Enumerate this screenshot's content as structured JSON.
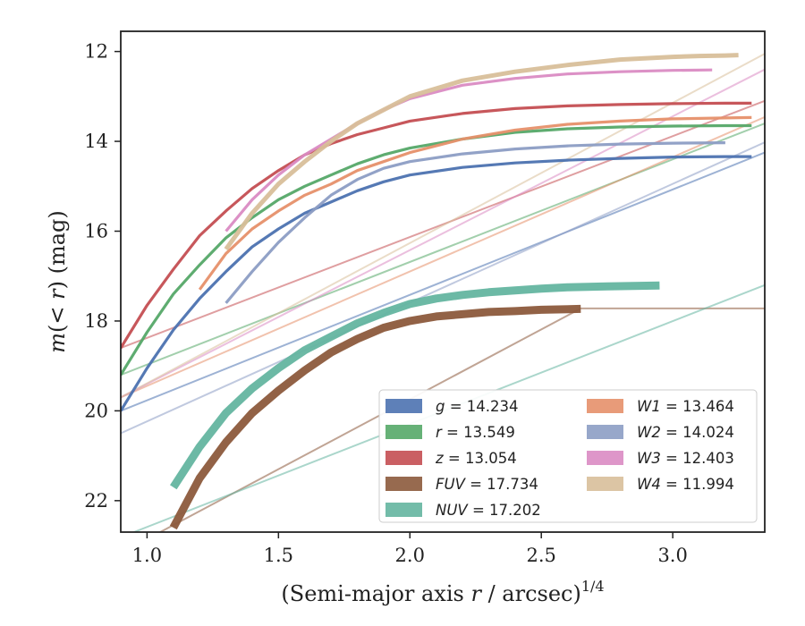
{
  "chart_data": {
    "type": "line",
    "xlabel_main": "(Semi-major axis ",
    "xlabel_var": "r",
    "xlabel_unit": " / arcsec)",
    "xlabel_exp": "1/4",
    "ylabel_m": "m",
    "ylabel_inner": "(< ",
    "ylabel_var": "r",
    "ylabel_close": ")",
    "ylabel_unit": " (mag)",
    "xlim": [
      0.9,
      3.35
    ],
    "ylim": [
      22.7,
      11.55
    ],
    "y_inverted": true,
    "xticks": [
      1.0,
      1.5,
      2.0,
      2.5,
      3.0
    ],
    "xtick_labels": [
      "1.0",
      "1.5",
      "2.0",
      "2.5",
      "3.0"
    ],
    "yticks": [
      12,
      14,
      16,
      18,
      20,
      22
    ],
    "ytick_labels": [
      "12",
      "14",
      "16",
      "18",
      "20",
      "22"
    ],
    "legend_position": "lower-right",
    "legend_columns": 2,
    "series": [
      {
        "name": "g",
        "label_value": "= 14.234",
        "color": "#4c72b0",
        "thin_x": [
          0.9,
          3.35
        ],
        "thin_y": [
          20.0,
          14.25
        ],
        "x": [
          0.9,
          1.0,
          1.1,
          1.2,
          1.3,
          1.4,
          1.5,
          1.6,
          1.7,
          1.8,
          1.9,
          2.0,
          2.2,
          2.4,
          2.6,
          2.8,
          3.0,
          3.2,
          3.3
        ],
        "y": [
          20.0,
          19.05,
          18.2,
          17.5,
          16.9,
          16.35,
          15.95,
          15.6,
          15.35,
          15.1,
          14.9,
          14.75,
          14.58,
          14.48,
          14.42,
          14.38,
          14.35,
          14.34,
          14.34
        ]
      },
      {
        "name": "r",
        "label_value": "= 13.549",
        "color": "#55a868",
        "thin_x": [
          0.9,
          3.35
        ],
        "thin_y": [
          19.2,
          13.6
        ],
        "x": [
          0.9,
          1.0,
          1.1,
          1.2,
          1.3,
          1.4,
          1.5,
          1.6,
          1.7,
          1.8,
          1.9,
          2.0,
          2.2,
          2.4,
          2.6,
          2.8,
          3.0,
          3.2,
          3.3
        ],
        "y": [
          19.2,
          18.25,
          17.4,
          16.75,
          16.15,
          15.7,
          15.3,
          15.0,
          14.75,
          14.5,
          14.3,
          14.15,
          13.95,
          13.8,
          13.72,
          13.68,
          13.66,
          13.65,
          13.65
        ]
      },
      {
        "name": "z",
        "label_value": "= 13.054",
        "color": "#c44e52",
        "thin_x": [
          0.9,
          3.35
        ],
        "thin_y": [
          18.6,
          13.1
        ],
        "x": [
          0.9,
          1.0,
          1.1,
          1.2,
          1.3,
          1.4,
          1.5,
          1.6,
          1.7,
          1.8,
          1.9,
          2.0,
          2.2,
          2.4,
          2.6,
          2.8,
          3.0,
          3.2,
          3.3
        ],
        "y": [
          18.6,
          17.65,
          16.85,
          16.1,
          15.55,
          15.05,
          14.65,
          14.3,
          14.05,
          13.85,
          13.7,
          13.55,
          13.38,
          13.27,
          13.21,
          13.18,
          13.16,
          13.15,
          13.15
        ]
      },
      {
        "name": "FUV",
        "label_value": "= 17.734",
        "color": "#8c5a3c",
        "thin_x": [
          1.05,
          2.65,
          3.35
        ],
        "thin_y": [
          22.7,
          17.72,
          17.72
        ],
        "x": [
          1.1,
          1.2,
          1.3,
          1.4,
          1.5,
          1.6,
          1.7,
          1.8,
          1.9,
          2.0,
          2.1,
          2.2,
          2.3,
          2.4,
          2.5,
          2.65
        ],
        "y": [
          22.6,
          21.5,
          20.7,
          20.05,
          19.55,
          19.1,
          18.7,
          18.4,
          18.15,
          18.0,
          17.9,
          17.85,
          17.8,
          17.78,
          17.75,
          17.73
        ]
      },
      {
        "name": "NUV",
        "label_value": "= 17.202",
        "color": "#64b5a0",
        "thin_x": [
          0.95,
          3.35
        ],
        "thin_y": [
          22.7,
          17.2
        ],
        "x": [
          1.1,
          1.2,
          1.3,
          1.4,
          1.5,
          1.6,
          1.7,
          1.8,
          1.9,
          2.0,
          2.1,
          2.2,
          2.3,
          2.4,
          2.5,
          2.6,
          2.75,
          2.95
        ],
        "y": [
          21.7,
          20.8,
          20.05,
          19.5,
          19.05,
          18.65,
          18.35,
          18.05,
          17.82,
          17.62,
          17.5,
          17.42,
          17.36,
          17.32,
          17.28,
          17.25,
          17.23,
          17.21
        ]
      },
      {
        "name": "W1",
        "label_value": "= 13.464",
        "color": "#e6906a",
        "thin_x": [
          0.9,
          3.35
        ],
        "thin_y": [
          19.7,
          13.46
        ],
        "x": [
          1.2,
          1.3,
          1.4,
          1.5,
          1.6,
          1.7,
          1.8,
          1.9,
          2.0,
          2.2,
          2.4,
          2.6,
          2.8,
          3.0,
          3.2,
          3.3
        ],
        "y": [
          17.3,
          16.5,
          15.95,
          15.55,
          15.2,
          14.95,
          14.65,
          14.45,
          14.25,
          13.95,
          13.75,
          13.62,
          13.55,
          13.5,
          13.48,
          13.47
        ]
      },
      {
        "name": "W2",
        "label_value": "= 14.024",
        "color": "#8c9dc4",
        "thin_x": [
          0.9,
          3.35
        ],
        "thin_y": [
          20.5,
          14.02
        ],
        "x": [
          1.3,
          1.4,
          1.5,
          1.6,
          1.7,
          1.8,
          1.9,
          2.0,
          2.2,
          2.4,
          2.6,
          2.8,
          3.0,
          3.2
        ],
        "y": [
          17.6,
          16.9,
          16.25,
          15.7,
          15.2,
          14.85,
          14.6,
          14.45,
          14.28,
          14.17,
          14.1,
          14.06,
          14.04,
          14.03
        ]
      },
      {
        "name": "W3",
        "label_value": "= 12.403",
        "color": "#da8bc3",
        "thin_x": [
          0.9,
          3.35
        ],
        "thin_y": [
          19.7,
          12.4
        ],
        "x": [
          1.3,
          1.4,
          1.5,
          1.6,
          1.7,
          1.8,
          1.9,
          2.0,
          2.2,
          2.4,
          2.6,
          2.8,
          3.0,
          3.15
        ],
        "y": [
          16.0,
          15.3,
          14.75,
          14.3,
          13.95,
          13.6,
          13.3,
          13.05,
          12.75,
          12.6,
          12.5,
          12.45,
          12.42,
          12.41
        ]
      },
      {
        "name": "W4",
        "label_value": "= 11.994",
        "color": "#d8bf9a",
        "thin_x": [
          0.9,
          3.35
        ],
        "thin_y": [
          19.7,
          12.05
        ],
        "x": [
          1.3,
          1.4,
          1.5,
          1.6,
          1.7,
          1.8,
          1.9,
          2.0,
          2.2,
          2.4,
          2.6,
          2.8,
          3.0,
          3.1,
          3.2,
          3.25
        ],
        "y": [
          16.4,
          15.6,
          14.95,
          14.45,
          14.0,
          13.6,
          13.3,
          13.0,
          12.65,
          12.45,
          12.3,
          12.18,
          12.12,
          12.1,
          12.09,
          12.08
        ]
      }
    ]
  }
}
